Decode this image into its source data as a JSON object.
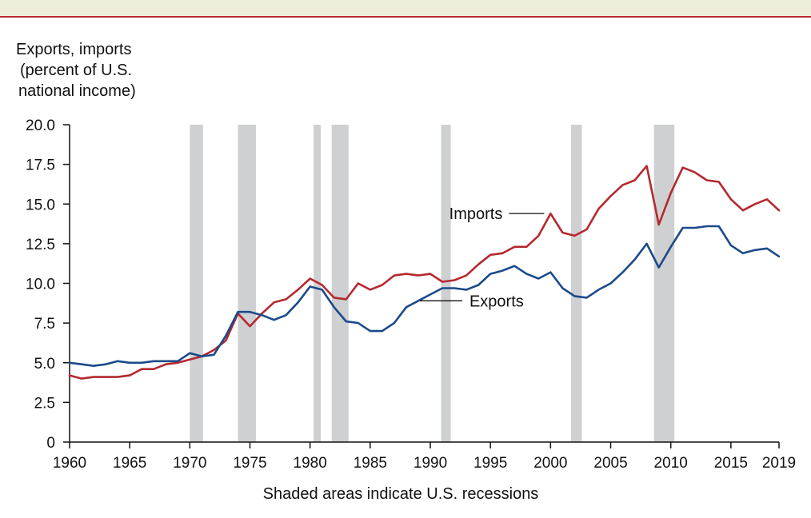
{
  "chart_data": {
    "type": "line",
    "ylabel_lines": [
      "Exports, imports",
      "(percent of U.S.",
      "national income)"
    ],
    "xlabel": "Shaded areas indicate U.S. recessions",
    "xlim": [
      1960,
      2019
    ],
    "ylim": [
      0,
      20
    ],
    "x_ticks": [
      1960,
      1965,
      1970,
      1975,
      1980,
      1985,
      1990,
      1995,
      2000,
      2005,
      2010,
      2015,
      2019
    ],
    "y_ticks": [
      0,
      2.5,
      5.0,
      7.5,
      10.0,
      12.5,
      15.0,
      17.5,
      20.0
    ],
    "y_tick_labels": [
      "0",
      "2.5",
      "5.0",
      "7.5",
      "10.0",
      "12.5",
      "15.0",
      "17.5",
      "20.0"
    ],
    "recessions": [
      [
        1970,
        1971.1
      ],
      [
        1974,
        1975.5
      ],
      [
        1980.3,
        1980.9
      ],
      [
        1981.8,
        1983.2
      ],
      [
        1990.9,
        1991.7
      ],
      [
        2001.7,
        2002.6
      ],
      [
        2008.6,
        2010.3
      ]
    ],
    "series": [
      {
        "name": "Imports",
        "color": "#b5292e",
        "x": [
          1960,
          1961,
          1962,
          1963,
          1964,
          1965,
          1966,
          1967,
          1968,
          1969,
          1970,
          1971,
          1972,
          1973,
          1974,
          1975,
          1976,
          1977,
          1978,
          1979,
          1980,
          1981,
          1982,
          1983,
          1984,
          1985,
          1986,
          1987,
          1988,
          1989,
          1990,
          1991,
          1992,
          1993,
          1994,
          1995,
          1996,
          1997,
          1998,
          1999,
          2000,
          2001,
          2002,
          2003,
          2004,
          2005,
          2006,
          2007,
          2008,
          2009,
          2010,
          2011,
          2012,
          2013,
          2014,
          2015,
          2016,
          2017,
          2018,
          2019
        ],
        "values": [
          4.2,
          4.0,
          4.1,
          4.1,
          4.1,
          4.2,
          4.6,
          4.6,
          4.9,
          5.0,
          5.2,
          5.4,
          5.8,
          6.4,
          8.1,
          7.3,
          8.1,
          8.8,
          9.0,
          9.6,
          10.3,
          9.9,
          9.1,
          9.0,
          10.0,
          9.6,
          9.9,
          10.5,
          10.6,
          10.5,
          10.6,
          10.1,
          10.2,
          10.5,
          11.2,
          11.8,
          11.9,
          12.3,
          12.3,
          13.0,
          14.4,
          13.2,
          13.0,
          13.4,
          14.7,
          15.5,
          16.2,
          16.5,
          17.4,
          13.7,
          15.7,
          17.3,
          17.0,
          16.5,
          16.4,
          15.3,
          14.6,
          15.0,
          15.3,
          14.6
        ]
      },
      {
        "name": "Exports",
        "color": "#1b4a8a",
        "x": [
          1960,
          1961,
          1962,
          1963,
          1964,
          1965,
          1966,
          1967,
          1968,
          1969,
          1970,
          1971,
          1972,
          1973,
          1974,
          1975,
          1976,
          1977,
          1978,
          1979,
          1980,
          1981,
          1982,
          1983,
          1984,
          1985,
          1986,
          1987,
          1988,
          1989,
          1990,
          1991,
          1992,
          1993,
          1994,
          1995,
          1996,
          1997,
          1998,
          1999,
          2000,
          2001,
          2002,
          2003,
          2004,
          2005,
          2006,
          2007,
          2008,
          2009,
          2010,
          2011,
          2012,
          2013,
          2014,
          2015,
          2016,
          2017,
          2018,
          2019
        ],
        "values": [
          5.0,
          4.9,
          4.8,
          4.9,
          5.1,
          5.0,
          5.0,
          5.1,
          5.1,
          5.1,
          5.6,
          5.4,
          5.5,
          6.7,
          8.2,
          8.2,
          8.0,
          7.7,
          8.0,
          8.8,
          9.8,
          9.6,
          8.5,
          7.6,
          7.5,
          7.0,
          7.0,
          7.5,
          8.5,
          8.9,
          9.3,
          9.7,
          9.7,
          9.6,
          9.9,
          10.6,
          10.8,
          11.1,
          10.6,
          10.3,
          10.7,
          9.7,
          9.2,
          9.1,
          9.6,
          10.0,
          10.7,
          11.5,
          12.5,
          11.0,
          12.3,
          13.5,
          13.5,
          13.6,
          13.6,
          12.4,
          11.9,
          12.1,
          12.2,
          11.7
        ]
      }
    ],
    "annotations": [
      {
        "text": "Imports",
        "series": "Imports",
        "x": 2000
      },
      {
        "text": "Exports",
        "series": "Exports",
        "x": 1989
      }
    ],
    "grid": false
  }
}
